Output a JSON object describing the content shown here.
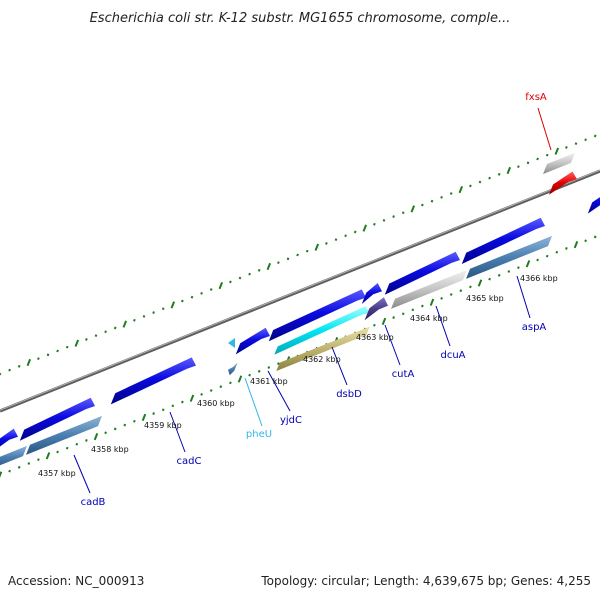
{
  "title": "Escherichia coli str. K-12 substr. MG1655 chromosome, comple...",
  "footer": {
    "accession": "Accession: NC_000913",
    "summary": "Topology: circular; Length: 4,639,675 bp; Genes: 4,255"
  },
  "colors": {
    "backbone": "#7a7a7a",
    "tick": "#1e7d1e",
    "cds": "#0a0ae0",
    "cds_light": "#4a7fb0",
    "gray_feature": "#c4c4c4",
    "trna": "#30b8e8",
    "red_feature": "#e00000",
    "cyan_feature": "#00e5f0",
    "olive_feature": "#c0b470",
    "purple_feature": "#4a3c8c"
  },
  "scale_labels": [
    "4357 kbp",
    "4358 kbp",
    "4359 kbp",
    "4360 kbp",
    "4361 kbp",
    "4362 kbp",
    "4363 kbp",
    "4364 kbp",
    "4365 kbp",
    "4366 kbp"
  ],
  "genes": [
    {
      "name": "cadB",
      "color": "#0000b0"
    },
    {
      "name": "cadC",
      "color": "#0000b0"
    },
    {
      "name": "pheU",
      "color": "#30b8e8"
    },
    {
      "name": "yjdC",
      "color": "#0000b0"
    },
    {
      "name": "dsbD",
      "color": "#0000b0"
    },
    {
      "name": "cutA",
      "color": "#0000b0"
    },
    {
      "name": "dcuA",
      "color": "#0000b0"
    },
    {
      "name": "aspA",
      "color": "#0000b0"
    },
    {
      "name": "fxsA",
      "color": "#e00000"
    }
  ]
}
